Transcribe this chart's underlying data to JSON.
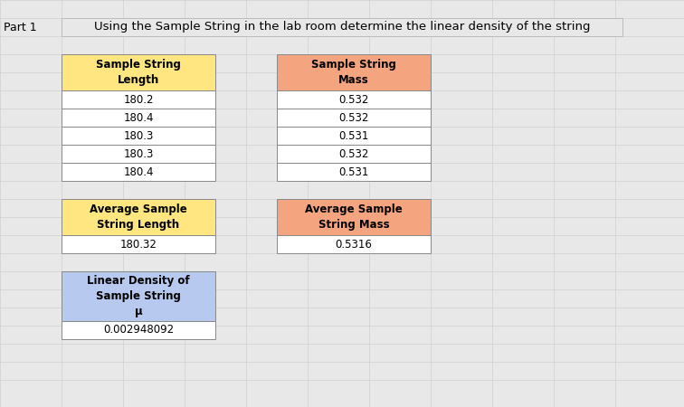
{
  "title": "Using the Sample String in the lab room determine the linear density of the string",
  "part_label": "Part 1",
  "header_color_yellow": "#FFE680",
  "header_color_orange": "#F4A580",
  "header_color_blue": "#B8C9F0",
  "cell_bg": "#FFFFFF",
  "grid_line_color": "#D0D0D0",
  "grid_bg": "#E8E8E8",
  "border_color": "#888888",
  "length_header": "Sample String\nLength",
  "mass_header": "Sample String\nMass",
  "length_values": [
    "180.2",
    "180.4",
    "180.3",
    "180.3",
    "180.4"
  ],
  "mass_values": [
    "0.532",
    "0.532",
    "0.531",
    "0.532",
    "0.531"
  ],
  "avg_length_header": "Average Sample\nString Length",
  "avg_mass_header": "Average Sample\nString Mass",
  "avg_length_value": "180.32",
  "avg_mass_value": "0.5316",
  "linear_density_header": "Linear Density of\nSample String\nμ",
  "linear_density_value": "0.002948092",
  "font_size_title": 9.5,
  "font_size_cell": 8.5,
  "font_size_part": 9,
  "num_cols": 11,
  "num_rows": 22,
  "col_starts": [
    0,
    68,
    136,
    204,
    272,
    340,
    408,
    476,
    544,
    612,
    680,
    756
  ],
  "row_starts": [
    0,
    20,
    40,
    60,
    80,
    100,
    120,
    140,
    160,
    180,
    200,
    220,
    240,
    260,
    280,
    300,
    320,
    340,
    360,
    380,
    400,
    420,
    450
  ]
}
